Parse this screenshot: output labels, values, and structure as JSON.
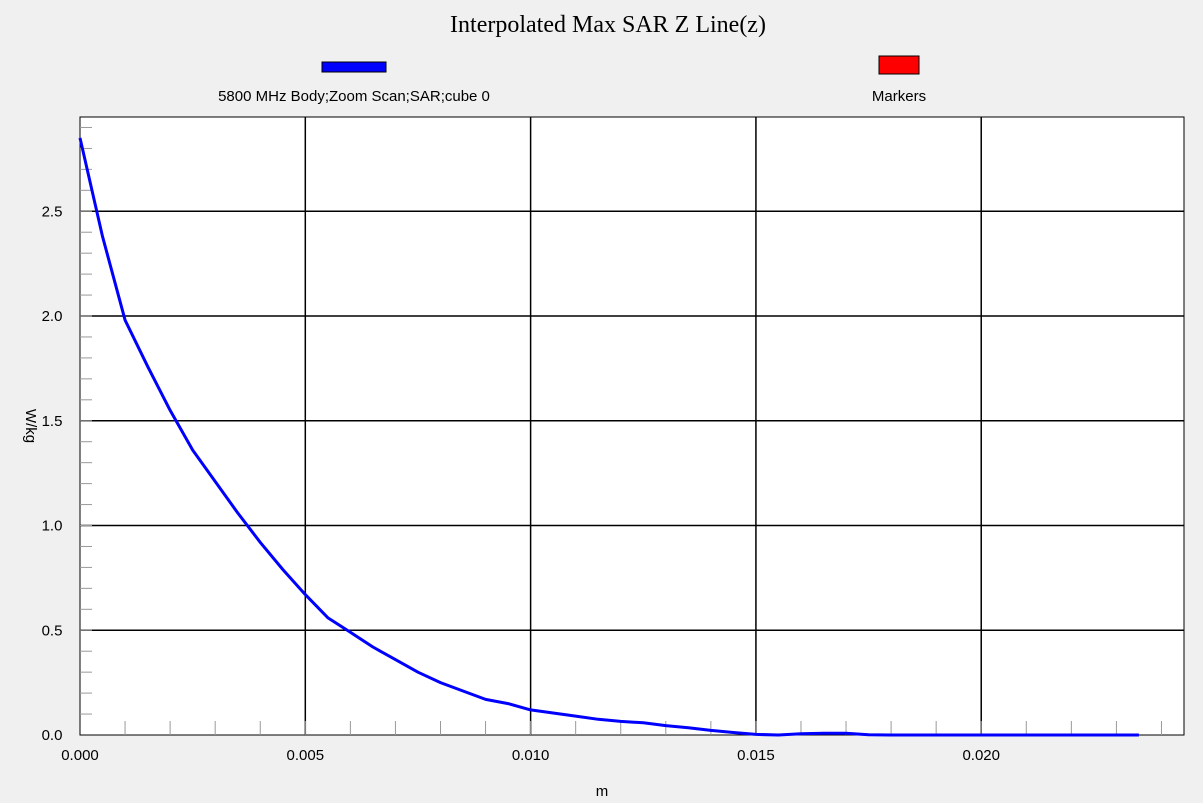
{
  "chart_data": {
    "type": "line",
    "title": "Interpolated Max SAR Z Line(z)",
    "xlabel": "m",
    "ylabel": "W/kg",
    "xlim": [
      0.0,
      0.0245
    ],
    "ylim": [
      0.0,
      2.95
    ],
    "x_ticks": [
      0.0,
      0.005,
      0.01,
      0.015,
      0.02
    ],
    "x_tick_labels": [
      "0.000",
      "0.005",
      "0.010",
      "0.015",
      "0.020"
    ],
    "y_ticks": [
      0.0,
      0.5,
      1.0,
      1.5,
      2.0,
      2.5
    ],
    "y_tick_labels": [
      "0.0",
      "0.5",
      "1.0",
      "1.5",
      "2.0",
      "2.5"
    ],
    "grid": true,
    "legend_position": "top",
    "legend": [
      {
        "name": "5800 MHz Body;Zoom Scan;SAR;cube 0",
        "color": "#0000ff"
      },
      {
        "name": "Markers",
        "color": "#ff0000"
      }
    ],
    "series": [
      {
        "name": "5800 MHz Body;Zoom Scan;SAR;cube 0",
        "color": "#0000ff",
        "x": [
          0.0,
          0.0005,
          0.001,
          0.0015,
          0.002,
          0.0025,
          0.003,
          0.0035,
          0.004,
          0.0045,
          0.005,
          0.0055,
          0.006,
          0.0065,
          0.007,
          0.0075,
          0.008,
          0.0085,
          0.009,
          0.0095,
          0.01,
          0.0105,
          0.011,
          0.0115,
          0.012,
          0.0125,
          0.013,
          0.0135,
          0.014,
          0.0145,
          0.015,
          0.0155,
          0.016,
          0.0165,
          0.017,
          0.0175,
          0.018,
          0.019,
          0.02,
          0.021,
          0.022,
          0.023,
          0.0235
        ],
        "y": [
          2.85,
          2.38,
          1.98,
          1.76,
          1.55,
          1.36,
          1.21,
          1.06,
          0.92,
          0.79,
          0.67,
          0.56,
          0.49,
          0.42,
          0.36,
          0.3,
          0.25,
          0.21,
          0.17,
          0.15,
          0.12,
          0.105,
          0.09,
          0.075,
          0.065,
          0.058,
          0.045,
          0.035,
          0.022,
          0.012,
          0.003,
          0.0,
          0.006,
          0.008,
          0.008,
          0.001,
          0.0,
          0.0,
          0.0,
          0.0,
          0.0,
          0.0,
          0.0
        ]
      }
    ]
  }
}
